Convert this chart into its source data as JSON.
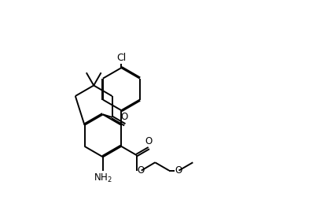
{
  "bg_color": "#ffffff",
  "line_color": "#000000",
  "line_width": 1.4,
  "font_size": 8.5,
  "figsize": [
    3.93,
    2.68
  ],
  "dpi": 100,
  "xlim": [
    0,
    10
  ],
  "ylim": [
    0,
    7
  ]
}
